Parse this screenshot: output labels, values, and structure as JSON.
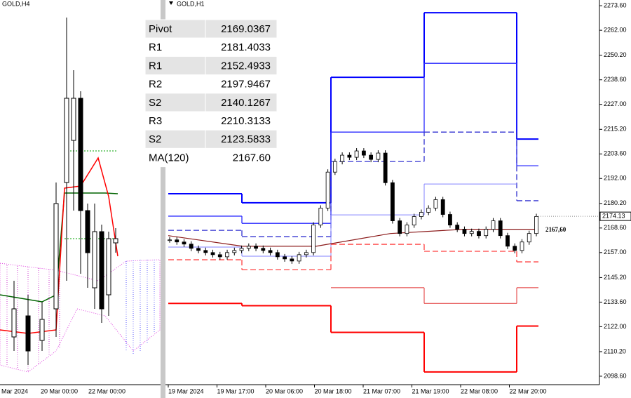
{
  "left_panel": {
    "title": "GOLD,H4",
    "xlabels": [
      "Mar 2024",
      "20 Mar 00:00",
      "22 Mar 00:00"
    ]
  },
  "table": {
    "rows": [
      [
        "Pivot",
        "2169.0367"
      ],
      [
        "R1",
        "2181.4033"
      ],
      [
        "R1",
        "2152.4933"
      ],
      [
        "R2",
        "2197.9467"
      ],
      [
        "S2",
        "2140.1267"
      ],
      [
        "R3",
        "2210.3133"
      ],
      [
        "S2",
        "2123.5833"
      ],
      [
        "MA(120)",
        "2167.60"
      ]
    ]
  },
  "chart_data": {
    "type": "step",
    "title": "GOLD,H1",
    "categories": [
      null,
      null,
      null,
      null,
      null
    ],
    "xlabels": [
      "19 Mar 2024",
      "19 Mar 17:00",
      "20 Mar 06:00",
      "20 Mar 18:00",
      "21 Mar 07:00",
      "21 Mar 19:00",
      "22 Mar 08:00",
      "22 Mar 20:00"
    ],
    "series": [
      {
        "color": "#0000ff",
        "width": 2,
        "dash": false,
        "values": [
          2184.8,
          2180.5,
          2239.8,
          2270.3,
          2210.6
        ]
      },
      {
        "color": "#2a2aff",
        "width": 1.3,
        "dash": false,
        "values": [
          2174.2,
          2170.8,
          2213.9,
          2246.4,
          2198.0
        ]
      },
      {
        "color": "#3030d0",
        "width": 1.3,
        "dash": true,
        "values": [
          2167.5,
          2164.5,
          2200.0,
          2213.9,
          2181.5
        ]
      },
      {
        "color": "#8080ff",
        "width": 1,
        "dash": false,
        "values": [
          2159.6,
          2155.3,
          2174.8,
          2189.4,
          null
        ]
      },
      {
        "color": "#ff4040",
        "width": 1.3,
        "dash": true,
        "values": [
          2153.6,
          2148.9,
          2160.9,
          2157.6,
          2152.6
        ]
      },
      {
        "color": "#e03030",
        "width": 1,
        "dash": false,
        "values": [
          null,
          null,
          2140.4,
          2133.0,
          2140.4
        ]
      },
      {
        "color": "#ff0000",
        "width": 2,
        "dash": false,
        "values": [
          2133.0,
          2131.9,
          2119.3,
          2100.6,
          2122.3
        ]
      }
    ],
    "closes": [
      2163,
      2162,
      2161,
      2159,
      2158,
      2157,
      2156,
      2155,
      2157,
      2158,
      2159,
      2160,
      2159,
      2158,
      2157,
      2155,
      2154,
      2153,
      2156,
      2157,
      2170,
      2178,
      2195,
      2200,
      2203,
      2202,
      2205,
      2203,
      2201,
      2204,
      2190,
      2172,
      2166,
      2170,
      2174,
      2176,
      2178,
      2182,
      2175,
      2170,
      2168,
      2166,
      2167,
      2165,
      2168,
      2172,
      2165,
      2160,
      2158,
      2162,
      2166,
      2174
    ],
    "ma": {
      "color": "#8b1a1a",
      "values": [
        2165,
        2160,
        2160,
        2166,
        2168,
        2168
      ]
    },
    "last_price": 2174.13,
    "annotation": {
      "value": 2167.6,
      "label": "2167,60"
    },
    "ylim": [
      2095.6,
      2276.3
    ],
    "yticks": [
      {
        "value": 2273.6,
        "label": "2273.60"
      },
      {
        "value": 2262,
        "label": "2262.00"
      },
      {
        "value": 2250.2,
        "label": "2250.20"
      },
      {
        "value": 2238.6,
        "label": "2238.60"
      },
      {
        "value": 2227,
        "label": "2227.00"
      },
      {
        "value": 2215.2,
        "label": "2215.20"
      },
      {
        "value": 2203.6,
        "label": "2203.60"
      },
      {
        "value": 2192,
        "label": "2192.00"
      },
      {
        "value": 2180.2,
        "label": "2180.20"
      },
      {
        "value": 2168.6,
        "label": "2168.60"
      },
      {
        "value": 2157,
        "label": "2157.00"
      },
      {
        "value": 2145.2,
        "label": "2145.20"
      },
      {
        "value": 2133.6,
        "label": "2133.60"
      },
      {
        "value": 2122,
        "label": "2122.00"
      },
      {
        "value": 2110.2,
        "label": "2110.20"
      },
      {
        "value": 2098.6,
        "label": "2098.60"
      }
    ]
  }
}
